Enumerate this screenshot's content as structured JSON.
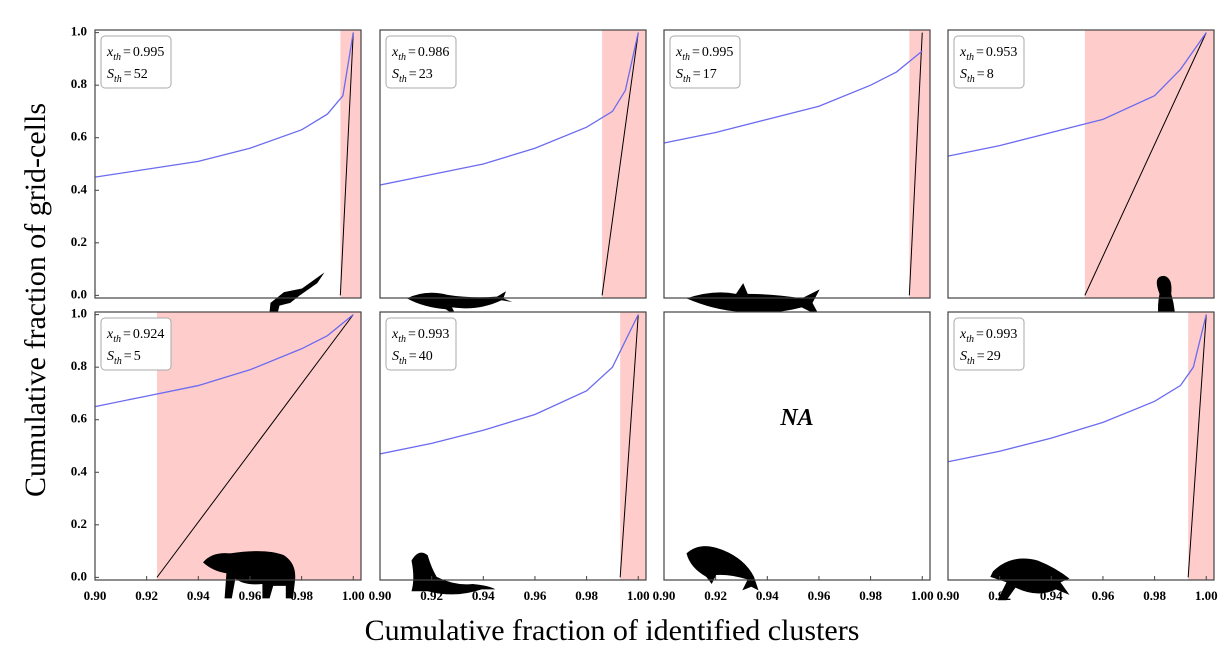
{
  "figure": {
    "xlabel": "Cumulative fraction of identified clusters",
    "ylabel": "Cumulative fraction of grid-cells"
  },
  "chart_data": [
    {
      "type": "line",
      "color": "#6b6bf0",
      "shade_color": "#ffcccc",
      "xlim": [
        0.9,
        1.003
      ],
      "ylim": [
        -0.01,
        1.01
      ],
      "yticks": [
        {
          "value": 0,
          "label": "0.0"
        },
        0.2,
        0.4,
        0.6,
        0.8,
        {
          "value": 1,
          "label": "1.0"
        }
      ],
      "x": [
        0.9,
        0.92,
        0.94,
        0.96,
        0.98,
        0.99,
        0.996,
        1.0
      ],
      "values": [
        0.45,
        0.48,
        0.51,
        0.56,
        0.63,
        0.69,
        0.76,
        1.0
      ],
      "threshold": {
        "symbol": "x",
        "subscript": "th",
        "operator": "=",
        "value": 0.995
      },
      "size": {
        "symbol": "S",
        "subscript": "th",
        "operator": "=",
        "value": 52
      }
    },
    {
      "type": "line",
      "color": "#6b6bf0",
      "shade_color": "#ffcccc",
      "xlim": [
        0.9,
        1.003
      ],
      "ylim": [
        -0.01,
        1.01
      ],
      "x": [
        0.9,
        0.92,
        0.94,
        0.96,
        0.98,
        0.99,
        0.995,
        1.0
      ],
      "values": [
        0.42,
        0.46,
        0.5,
        0.56,
        0.64,
        0.7,
        0.78,
        1.0
      ],
      "threshold": {
        "symbol": "x",
        "subscript": "th",
        "operator": "=",
        "value": 0.986
      },
      "size": {
        "symbol": "S",
        "subscript": "th",
        "operator": "=",
        "value": 23
      }
    },
    {
      "type": "line",
      "color": "#6b6bf0",
      "shade_color": "#ffcccc",
      "xlim": [
        0.9,
        1.003
      ],
      "ylim": [
        -0.01,
        1.01
      ],
      "x": [
        0.9,
        0.92,
        0.94,
        0.96,
        0.98,
        0.99,
        1.0
      ],
      "values": [
        0.58,
        0.62,
        0.67,
        0.72,
        0.8,
        0.85,
        0.93
      ],
      "threshold": {
        "symbol": "x",
        "subscript": "th",
        "operator": "=",
        "value": 0.995
      },
      "size": {
        "symbol": "S",
        "subscript": "th",
        "operator": "=",
        "value": 17
      }
    },
    {
      "type": "line",
      "color": "#6b6bf0",
      "shade_color": "#ffcccc",
      "xlim": [
        0.9,
        1.003
      ],
      "ylim": [
        -0.01,
        1.01
      ],
      "x": [
        0.9,
        0.92,
        0.94,
        0.96,
        0.98,
        0.99,
        1.0
      ],
      "values": [
        0.53,
        0.57,
        0.62,
        0.67,
        0.76,
        0.86,
        1.0
      ],
      "threshold": {
        "symbol": "x",
        "subscript": "th",
        "operator": "=",
        "value": 0.953
      },
      "size": {
        "symbol": "S",
        "subscript": "th",
        "operator": "=",
        "value": 8
      }
    },
    {
      "type": "line",
      "color": "#6b6bf0",
      "shade_color": "#ffcccc",
      "xlim": [
        0.9,
        1.003
      ],
      "ylim": [
        -0.01,
        1.01
      ],
      "yticks": [
        {
          "value": 0,
          "label": "0.0"
        },
        0.2,
        0.4,
        0.6,
        0.8,
        {
          "value": 1,
          "label": "1.0"
        }
      ],
      "xticks": [
        {
          "value": 0.9,
          "label": "0.90"
        },
        0.92,
        0.94,
        0.96,
        0.98,
        {
          "value": 1,
          "label": "1.00"
        }
      ],
      "x": [
        0.9,
        0.92,
        0.94,
        0.96,
        0.98,
        0.99,
        1.0
      ],
      "values": [
        0.65,
        0.69,
        0.73,
        0.79,
        0.87,
        0.92,
        1.0
      ],
      "threshold": {
        "symbol": "x",
        "subscript": "th",
        "operator": "=",
        "value": 0.924
      },
      "size": {
        "symbol": "S",
        "subscript": "th",
        "operator": "=",
        "value": 5
      }
    },
    {
      "type": "line",
      "color": "#6b6bf0",
      "shade_color": "#ffcccc",
      "xlim": [
        0.9,
        1.003
      ],
      "ylim": [
        -0.01,
        1.01
      ],
      "xticks": [
        {
          "value": 0.9,
          "label": "0.90"
        },
        0.92,
        0.94,
        0.96,
        0.98,
        {
          "value": 1,
          "label": "1.00"
        }
      ],
      "x": [
        0.9,
        0.92,
        0.94,
        0.96,
        0.98,
        0.99,
        1.0
      ],
      "values": [
        0.47,
        0.51,
        0.56,
        0.62,
        0.71,
        0.8,
        1.0
      ],
      "threshold": {
        "symbol": "x",
        "subscript": "th",
        "operator": "=",
        "value": 0.993
      },
      "size": {
        "symbol": "S",
        "subscript": "th",
        "operator": "=",
        "value": 40
      }
    },
    {
      "type": "empty",
      "xlim": [
        0.9,
        1.003
      ],
      "ylim": [
        -0.01,
        1.01
      ],
      "xticks": [
        {
          "value": 0.9,
          "label": "0.90"
        },
        0.92,
        0.94,
        0.96,
        0.98,
        {
          "value": 1,
          "label": "1.00"
        }
      ],
      "annotation": "NA"
    },
    {
      "type": "line",
      "color": "#6b6bf0",
      "shade_color": "#ffcccc",
      "xlim": [
        0.9,
        1.003
      ],
      "ylim": [
        -0.01,
        1.01
      ],
      "xticks": [
        {
          "value": 0.9,
          "label": "0.90"
        },
        0.92,
        0.94,
        0.96,
        0.98,
        {
          "value": 1,
          "label": "1.00"
        }
      ],
      "x": [
        0.9,
        0.92,
        0.94,
        0.96,
        0.98,
        0.99,
        0.995,
        1.0
      ],
      "values": [
        0.44,
        0.48,
        0.53,
        0.59,
        0.67,
        0.73,
        0.8,
        1.0
      ],
      "threshold": {
        "symbol": "x",
        "subscript": "th",
        "operator": "=",
        "value": 0.993
      },
      "size": {
        "symbol": "S",
        "subscript": "th",
        "operator": "=",
        "value": 29
      }
    }
  ]
}
